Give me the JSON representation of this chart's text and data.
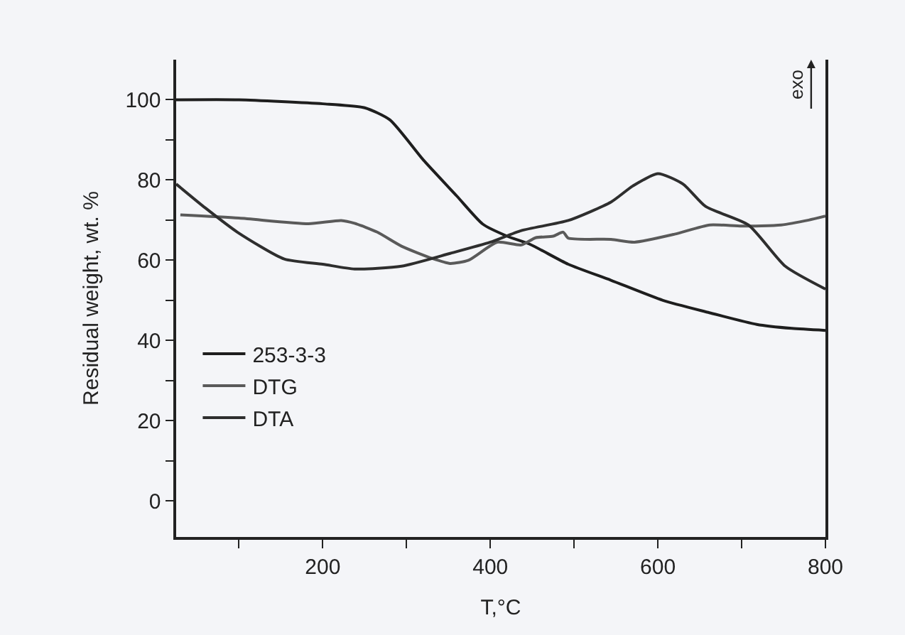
{
  "chart_data": {
    "type": "line",
    "xlabel": "T,°C",
    "ylabel": "Residual weight, wt. %",
    "xlim": [
      25,
      800
    ],
    "ylim": [
      -9,
      110
    ],
    "xticks": [
      {
        "value": 100,
        "label": null
      },
      200,
      {
        "value": 300,
        "label": null
      },
      400,
      {
        "value": 500,
        "label": null
      },
      600,
      {
        "value": 700,
        "label": null
      },
      800
    ],
    "yticks": [
      0,
      {
        "value": 10,
        "label": null
      },
      20,
      {
        "value": 30,
        "label": null
      },
      40,
      {
        "value": 50,
        "label": null
      },
      60,
      {
        "value": 70,
        "label": null
      },
      80,
      {
        "value": 90,
        "label": null
      },
      100
    ],
    "grid": false,
    "legend": "bottom left",
    "marker": "none",
    "line_style": "solid",
    "annotations": [
      "exo"
    ],
    "series": [
      {
        "name": "253-3-3",
        "color": "#1e1e1e",
        "x": [
          25,
          100,
          200,
          250,
          280,
          320,
          360,
          391,
          420,
          447,
          493,
          544,
          606,
          660,
          718,
          760,
          800
        ],
        "values": [
          100,
          100,
          99,
          98,
          95,
          85,
          76,
          69,
          66,
          64,
          59,
          55,
          50,
          47,
          44,
          43,
          42.5
        ]
      },
      {
        "name": "DTG",
        "color": "#5a5a5a",
        "x": [
          30,
          100,
          183,
          222,
          238,
          265,
          294,
          330,
          352,
          374,
          408,
          437,
          454,
          475,
          487,
          493,
          544,
          572,
          620,
          662,
          700,
          747,
          780,
          800
        ],
        "values": [
          71.3,
          70.5,
          69.1,
          69.9,
          69.2,
          67,
          63.5,
          60.5,
          59.2,
          60,
          64.5,
          63.8,
          65.6,
          66,
          67,
          65.5,
          65.2,
          64.5,
          66.5,
          68.8,
          68.5,
          68.8,
          70,
          71
        ]
      },
      {
        "name": "DTA",
        "color": "#2e2e2e",
        "x": [
          25,
          60,
          98,
          154,
          200,
          238,
          294,
          352,
          400,
          437,
          493,
          544,
          570,
          600,
          630,
          657,
          708,
          752,
          800
        ],
        "values": [
          79,
          73,
          67,
          60.3,
          59,
          57.8,
          58.5,
          61.7,
          64.5,
          67.4,
          69.9,
          74.5,
          78.5,
          81.6,
          79,
          73.4,
          68.8,
          58.5,
          52.8
        ]
      }
    ]
  }
}
